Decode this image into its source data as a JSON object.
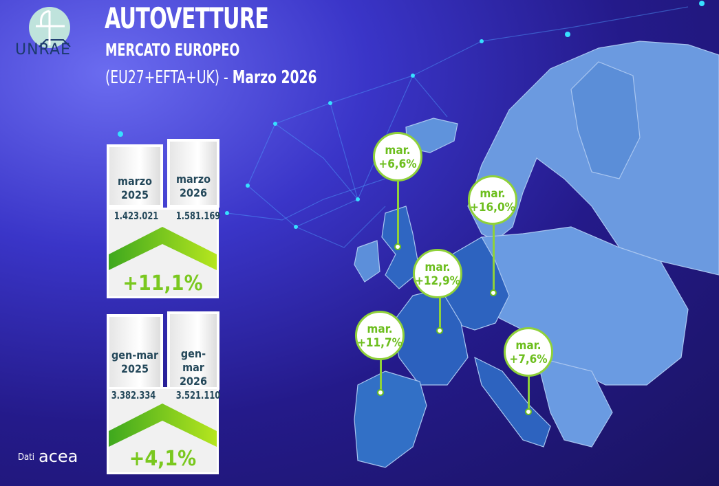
{
  "logo": {
    "text": "UNRAE"
  },
  "header": {
    "title": "AUTOVETTURE",
    "subtitle": "MERCATO EUROPEO",
    "scope": "(EU27+EFTA+UK) -",
    "period": "Marzo 2026"
  },
  "cards": [
    {
      "left_label": [
        "marzo",
        "2025"
      ],
      "right_label": [
        "marzo",
        "2026"
      ],
      "left_value": "1.423.021",
      "right_value": "1.581.169",
      "change": "+11,1%"
    },
    {
      "left_label": [
        "gen-mar",
        "2025"
      ],
      "right_label": [
        "gen-mar",
        "2026"
      ],
      "left_value": "3.382.334",
      "right_value": "3.521.110",
      "change": "+4,1%"
    }
  ],
  "callouts": [
    {
      "label": "mar.",
      "value": "+6,6%"
    },
    {
      "label": "mar.",
      "value": "+16,0%"
    },
    {
      "label": "mar.",
      "value": "+12,9%"
    },
    {
      "label": "mar.",
      "value": "+11,7%"
    },
    {
      "label": "mar.",
      "value": "+7,6%"
    }
  ],
  "source": {
    "label": "Dati",
    "logo": "acea"
  },
  "colors": {
    "accent_green": "#7ac81f",
    "map": "#4a7fd0",
    "text_dark": "#24485a"
  }
}
